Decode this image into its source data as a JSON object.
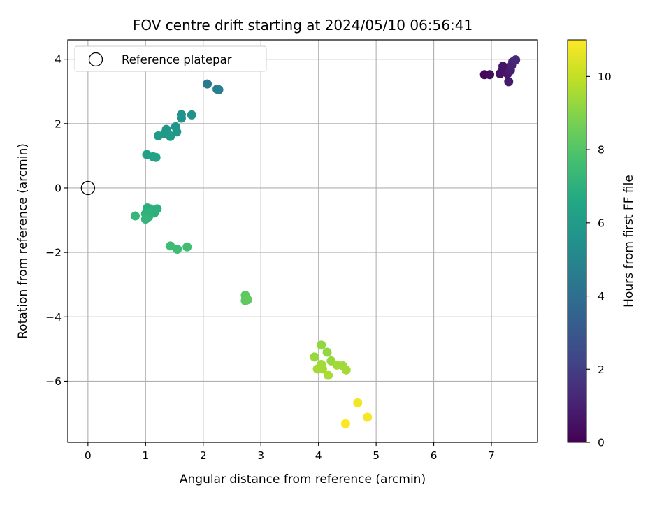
{
  "chart_data": {
    "type": "scatter",
    "title": "FOV centre drift starting at 2024/05/10 06:56:41",
    "xlabel": "Angular distance from reference (arcmin)",
    "ylabel": "Rotation from reference (arcmin)",
    "xlim": [
      -0.35,
      7.8
    ],
    "ylim": [
      -7.9,
      4.6
    ],
    "xticks": [
      0,
      1,
      2,
      3,
      4,
      5,
      6,
      7
    ],
    "yticks": [
      -6,
      -4,
      -2,
      0,
      2,
      4
    ],
    "xtick_labels": [
      "0",
      "1",
      "2",
      "3",
      "4",
      "5",
      "6",
      "7"
    ],
    "ytick_labels": [
      "−6",
      "−4",
      "−2",
      "0",
      "2",
      "4"
    ],
    "grid": true,
    "legend": {
      "placement": "top-left",
      "entries": [
        "Reference platepar"
      ]
    },
    "reference_point": {
      "x": 0,
      "y": 0,
      "label": "Reference platepar"
    },
    "colorbar": {
      "label": "Hours from first FF file",
      "colormap": "viridis",
      "range": [
        0,
        11
      ],
      "ticks": [
        0,
        2,
        4,
        6,
        8,
        10
      ],
      "tick_labels": [
        "0",
        "2",
        "4",
        "6",
        "8",
        "10"
      ]
    },
    "points": [
      {
        "x": 6.88,
        "y": 3.52,
        "h": 0.2
      },
      {
        "x": 6.97,
        "y": 3.52,
        "h": 0.3
      },
      {
        "x": 7.15,
        "y": 3.55,
        "h": 0.5
      },
      {
        "x": 7.18,
        "y": 3.62,
        "h": 0.6
      },
      {
        "x": 7.2,
        "y": 3.78,
        "h": 0.6
      },
      {
        "x": 7.28,
        "y": 3.55,
        "h": 0.7
      },
      {
        "x": 7.3,
        "y": 3.3,
        "h": 0.8
      },
      {
        "x": 7.33,
        "y": 3.65,
        "h": 0.9
      },
      {
        "x": 7.35,
        "y": 3.8,
        "h": 1.0
      },
      {
        "x": 7.37,
        "y": 3.92,
        "h": 1.1
      },
      {
        "x": 7.42,
        "y": 3.98,
        "h": 1.2
      },
      {
        "x": 2.07,
        "y": 3.23,
        "h": 4.5
      },
      {
        "x": 2.24,
        "y": 3.07,
        "h": 4.6
      },
      {
        "x": 2.27,
        "y": 3.05,
        "h": 4.7
      },
      {
        "x": 1.62,
        "y": 2.28,
        "h": 5.6
      },
      {
        "x": 1.62,
        "y": 2.17,
        "h": 5.6
      },
      {
        "x": 1.8,
        "y": 2.27,
        "h": 5.5
      },
      {
        "x": 1.52,
        "y": 1.9,
        "h": 5.7
      },
      {
        "x": 1.54,
        "y": 1.74,
        "h": 5.8
      },
      {
        "x": 1.36,
        "y": 1.82,
        "h": 5.8
      },
      {
        "x": 1.33,
        "y": 1.69,
        "h": 5.9
      },
      {
        "x": 1.4,
        "y": 1.65,
        "h": 5.9
      },
      {
        "x": 1.43,
        "y": 1.6,
        "h": 6.0
      },
      {
        "x": 1.22,
        "y": 1.62,
        "h": 6.0
      },
      {
        "x": 1.02,
        "y": 1.04,
        "h": 6.2
      },
      {
        "x": 1.13,
        "y": 0.97,
        "h": 6.3
      },
      {
        "x": 1.18,
        "y": 0.95,
        "h": 6.3
      },
      {
        "x": 1.03,
        "y": -0.62,
        "h": 6.9
      },
      {
        "x": 1.08,
        "y": -0.65,
        "h": 6.9
      },
      {
        "x": 1.12,
        "y": -0.7,
        "h": 7.0
      },
      {
        "x": 1.2,
        "y": -0.65,
        "h": 7.0
      },
      {
        "x": 1.15,
        "y": -0.78,
        "h": 7.0
      },
      {
        "x": 1.05,
        "y": -0.78,
        "h": 7.1
      },
      {
        "x": 1.0,
        "y": -0.8,
        "h": 7.1
      },
      {
        "x": 1.05,
        "y": -0.9,
        "h": 7.1
      },
      {
        "x": 1.0,
        "y": -0.97,
        "h": 7.2
      },
      {
        "x": 0.82,
        "y": -0.87,
        "h": 7.2
      },
      {
        "x": 1.43,
        "y": -1.8,
        "h": 7.5
      },
      {
        "x": 1.55,
        "y": -1.9,
        "h": 7.5
      },
      {
        "x": 1.72,
        "y": -1.83,
        "h": 7.6
      },
      {
        "x": 2.73,
        "y": -3.33,
        "h": 8.2
      },
      {
        "x": 2.73,
        "y": -3.5,
        "h": 8.2
      },
      {
        "x": 2.77,
        "y": -3.47,
        "h": 8.3
      },
      {
        "x": 4.05,
        "y": -4.88,
        "h": 9.2
      },
      {
        "x": 4.15,
        "y": -5.1,
        "h": 9.2
      },
      {
        "x": 3.93,
        "y": -5.25,
        "h": 9.3
      },
      {
        "x": 4.22,
        "y": -5.37,
        "h": 9.3
      },
      {
        "x": 4.05,
        "y": -5.48,
        "h": 9.4
      },
      {
        "x": 4.32,
        "y": -5.5,
        "h": 9.4
      },
      {
        "x": 4.42,
        "y": -5.52,
        "h": 9.4
      },
      {
        "x": 4.48,
        "y": -5.65,
        "h": 9.5
      },
      {
        "x": 3.98,
        "y": -5.62,
        "h": 9.5
      },
      {
        "x": 4.07,
        "y": -5.62,
        "h": 9.5
      },
      {
        "x": 4.17,
        "y": -5.82,
        "h": 9.6
      },
      {
        "x": 4.68,
        "y": -6.67,
        "h": 10.8
      },
      {
        "x": 4.85,
        "y": -7.12,
        "h": 10.9
      },
      {
        "x": 4.47,
        "y": -7.32,
        "h": 11.0
      }
    ]
  }
}
